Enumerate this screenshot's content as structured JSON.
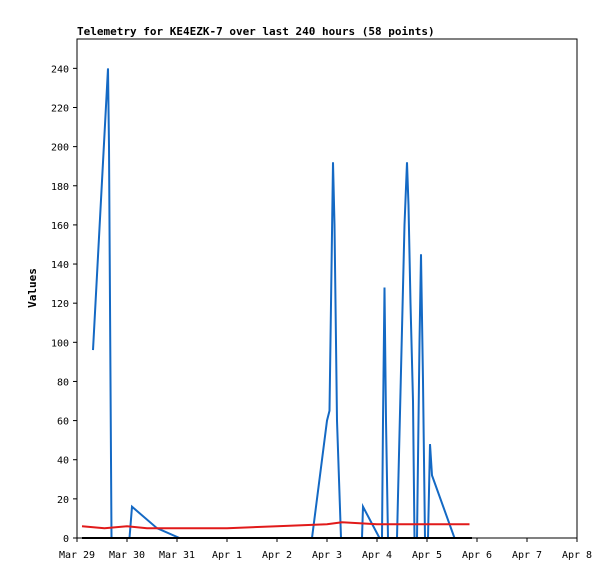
{
  "chart_data": {
    "type": "line",
    "title": "Telemetry for KE4EZK-7 over last 240 hours (58 points)",
    "xlabel": "",
    "ylabel": "Values",
    "x_tick_labels": [
      "Mar 29",
      "Mar 30",
      "Mar 31",
      "Apr 1",
      "Apr 2",
      "Apr 3",
      "Apr 4",
      "Apr 5",
      "Apr 6",
      "Apr 7",
      "Apr 8"
    ],
    "x_range_days": [
      0,
      10
    ],
    "ylim": [
      0,
      255
    ],
    "y_ticks": [
      0,
      20,
      40,
      60,
      80,
      100,
      120,
      140,
      160,
      180,
      200,
      220,
      240
    ],
    "grid": false,
    "legend": "none",
    "series": [
      {
        "color": "#1469c4",
        "points": [
          [
            0.32,
            96
          ],
          [
            0.62,
            240
          ],
          [
            0.64,
            200
          ],
          [
            0.66,
            120
          ],
          [
            0.68,
            40
          ],
          [
            0.69,
            0
          ],
          [
            1.05,
            0
          ],
          [
            1.1,
            16
          ],
          [
            1.6,
            5
          ],
          [
            2.05,
            0
          ],
          [
            4.7,
            0
          ],
          [
            5.0,
            60
          ],
          [
            5.05,
            65
          ],
          [
            5.12,
            192
          ],
          [
            5.15,
            160
          ],
          [
            5.2,
            60
          ],
          [
            5.28,
            0
          ],
          [
            5.7,
            0
          ],
          [
            5.72,
            16
          ],
          [
            6.05,
            0
          ],
          [
            6.1,
            0
          ],
          [
            6.12,
            60
          ],
          [
            6.15,
            128
          ],
          [
            6.18,
            60
          ],
          [
            6.22,
            0
          ],
          [
            6.4,
            0
          ],
          [
            6.55,
            160
          ],
          [
            6.6,
            192
          ],
          [
            6.63,
            170
          ],
          [
            6.67,
            120
          ],
          [
            6.72,
            70
          ],
          [
            6.75,
            0
          ],
          [
            6.8,
            0
          ],
          [
            6.85,
            100
          ],
          [
            6.88,
            145
          ],
          [
            6.92,
            80
          ],
          [
            6.96,
            0
          ],
          [
            7.02,
            0
          ],
          [
            7.06,
            48
          ],
          [
            7.1,
            32
          ],
          [
            7.55,
            0
          ],
          [
            7.6,
            0
          ]
        ]
      },
      {
        "color": "#e11a1a",
        "points": [
          [
            0.1,
            6
          ],
          [
            0.55,
            5
          ],
          [
            1.0,
            6
          ],
          [
            1.4,
            5
          ],
          [
            3.0,
            5
          ],
          [
            4.0,
            6
          ],
          [
            5.0,
            7
          ],
          [
            5.3,
            8
          ],
          [
            6.0,
            7
          ],
          [
            7.0,
            7
          ],
          [
            7.85,
            7
          ]
        ]
      },
      {
        "color": "#000000",
        "points": [
          [
            0.1,
            0
          ],
          [
            7.9,
            0
          ]
        ]
      }
    ]
  }
}
